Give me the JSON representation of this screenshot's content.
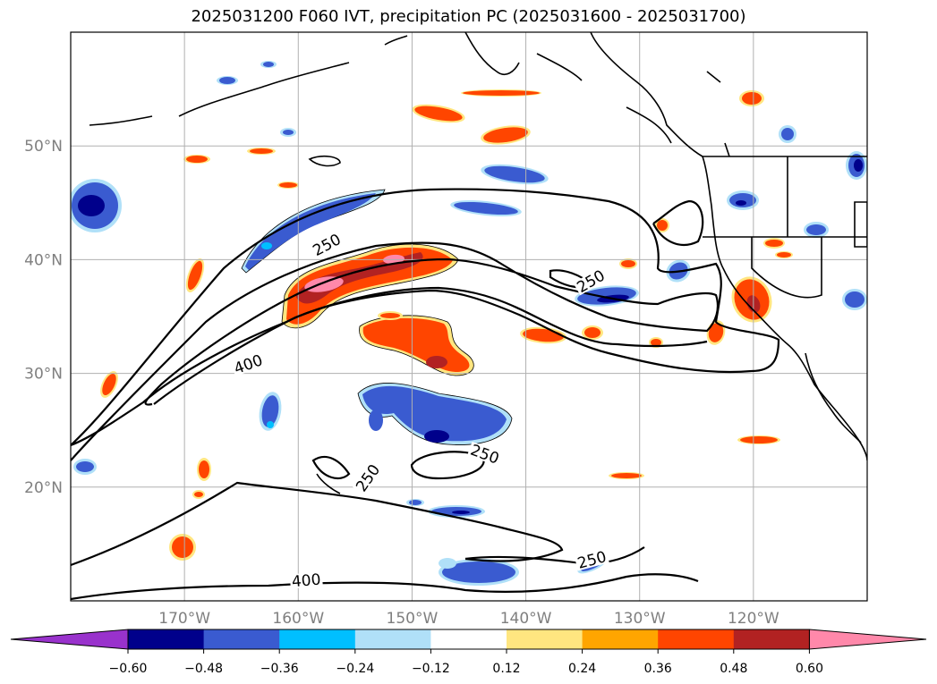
{
  "chart_data": {
    "type": "map",
    "title": "2025031200 F060 IVT, precipitation PC (2025031600 - 2025031700)",
    "xlim": [
      -180,
      -110
    ],
    "ylim": [
      10,
      60
    ],
    "grid": true,
    "lon_ticks": [
      {
        "value": -170,
        "label": "170°W"
      },
      {
        "value": -160,
        "label": "160°W"
      },
      {
        "value": -150,
        "label": "150°W"
      },
      {
        "value": -140,
        "label": "140°W"
      },
      {
        "value": -130,
        "label": "130°W"
      },
      {
        "value": -120,
        "label": "120°W"
      }
    ],
    "lat_ticks": [
      {
        "value": 20,
        "label": "20°N"
      },
      {
        "value": 30,
        "label": "30°N"
      },
      {
        "value": 40,
        "label": "40°N"
      },
      {
        "value": 50,
        "label": "50°N"
      }
    ],
    "colorbar": {
      "levels": [
        -0.6,
        -0.48,
        -0.36,
        -0.24,
        -0.12,
        0.12,
        0.24,
        0.36,
        0.48,
        0.6
      ],
      "tick_labels": [
        "−0.60",
        "−0.48",
        "−0.36",
        "−0.24",
        "−0.12",
        "0.12",
        "0.24",
        "0.36",
        "0.48",
        "0.60"
      ],
      "colors": [
        "#9932cc",
        "#00008b",
        "#3a5bd0",
        "#00bfff",
        "#b0e0f8",
        "#ffffff",
        "#ffe680",
        "#ffa500",
        "#ff4500",
        "#b22222",
        "#ff88aa"
      ],
      "extend": "both"
    },
    "contours": [
      {
        "value": 250,
        "label": "250"
      },
      {
        "value": 400,
        "label": "400"
      }
    ],
    "contour_labels": [
      {
        "text": "250",
        "lon": -157.5,
        "lat": 41.0
      },
      {
        "text": "250",
        "lon": -134.3,
        "lat": 37.8
      },
      {
        "text": "400",
        "lon": -164.4,
        "lat": 30.5
      },
      {
        "text": "250",
        "lon": -143.6,
        "lat": 22.6
      },
      {
        "text": "250",
        "lon": -153.9,
        "lat": 20.5
      },
      {
        "text": "250",
        "lon": -134.2,
        "lat": 13.3
      },
      {
        "text": "400",
        "lon": -159.3,
        "lat": 11.5
      }
    ],
    "shaded_regions": [
      {
        "name": "NW Pacific negative cluster",
        "sign": "negative",
        "peak": -0.6,
        "lon": -175.5,
        "lat": 45.0
      },
      {
        "name": "Central N Pacific negative band",
        "sign": "negative",
        "peak": -0.36,
        "lon": -162.0,
        "lat": 42.0
      },
      {
        "name": "Subtropical positive core",
        "sign": "positive",
        "peak": 0.6,
        "lon": -153.0,
        "lat": 38.5
      },
      {
        "name": "Positive band",
        "sign": "positive",
        "peak": 0.48,
        "lon": -150.0,
        "lat": 32.5
      },
      {
        "name": "Subtropical negative cluster",
        "sign": "negative",
        "peak": -0.6,
        "lon": -147.0,
        "lat": 27.0
      },
      {
        "name": "N California positive",
        "sign": "positive",
        "peak": 0.48,
        "lon": -121.0,
        "lat": 37.0
      },
      {
        "name": "Offshore negative",
        "sign": "negative",
        "peak": -0.6,
        "lon": -126.0,
        "lat": 39.0
      }
    ]
  }
}
